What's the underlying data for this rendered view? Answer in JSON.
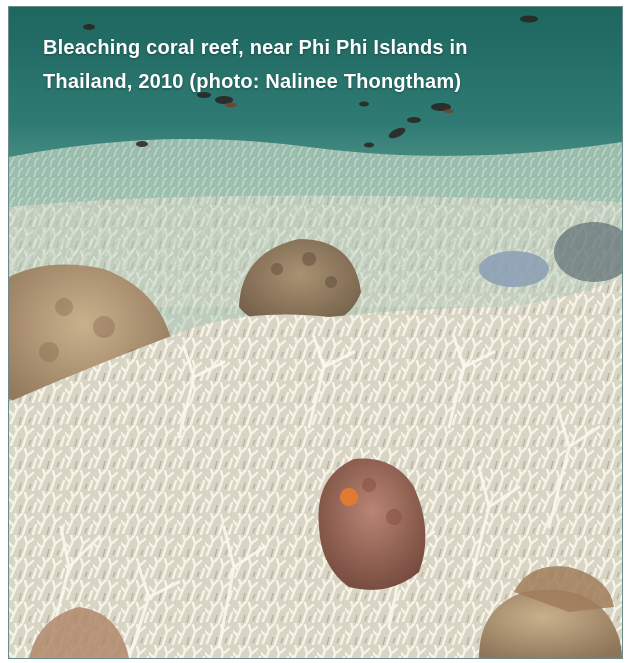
{
  "caption": {
    "line1": "Bleaching coral reef, near Phi Phi Islands in",
    "line2": "Thailand, 2010  (photo: Nalinee Thongtham)"
  },
  "photo": {
    "subject": "bleached branching coral reef underwater with small fish",
    "colors": {
      "water_top": "#2a6f6a",
      "water_mid": "#6fa79a",
      "bleached_coral": "#ece6d6",
      "massive_coral": "#b59a78",
      "pink_coral": "#a06a5a"
    }
  }
}
